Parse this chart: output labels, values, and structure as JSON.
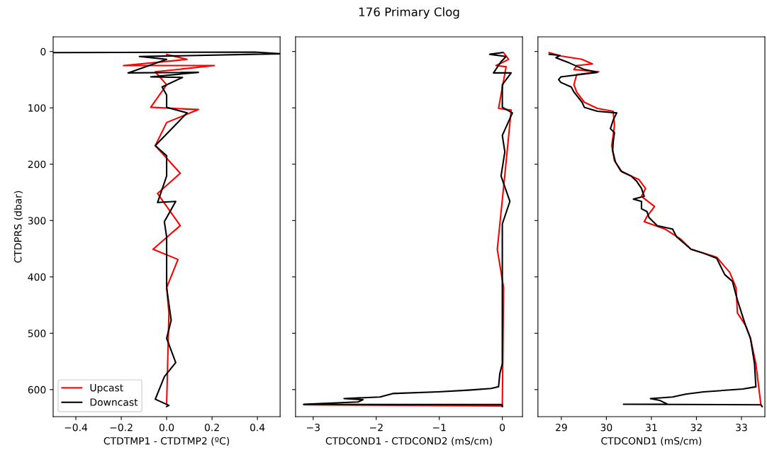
{
  "chart_data": [
    {
      "type": "line",
      "xlabel": "CTDTMP1 - CTDTMP2 (ºC)",
      "ylabel": "CTDPRS (dbar)",
      "xlim": [
        -0.5,
        0.5
      ],
      "xticks": [
        {
          "value": -0.4,
          "label": "−0.4"
        },
        {
          "value": -0.2,
          "label": "−0.2"
        },
        {
          "value": 0,
          "label": "0.0"
        },
        {
          "value": 0.2,
          "label": "0.2"
        },
        {
          "value": 0.4,
          "label": "0.4"
        }
      ],
      "ylim": [
        648,
        -26
      ],
      "yticks": [
        0,
        100,
        200,
        300,
        400,
        500,
        600
      ],
      "legend": "lower left",
      "grid": false,
      "series": [
        {
          "name": "Upcast",
          "color": "#ff0000",
          "x": [
            0,
            0.09,
            -0.19,
            0.21,
            -0.05,
            0,
            -0.07,
            0.14,
            0,
            -0.05,
            0.06,
            -0.04,
            0.06,
            -0.06,
            0.05,
            0,
            0.01,
            0
          ],
          "values": [
            5,
            14,
            25,
            25,
            36,
            59,
            99,
            103,
            126,
            167,
            216,
            252,
            309,
            351,
            369,
            419,
            464,
            626
          ]
        },
        {
          "name": "Downcast",
          "color": "#000000",
          "x": [
            -0.5,
            0.39,
            0.5,
            -0.12,
            0,
            -0.17,
            0.14,
            -0.07,
            0.07,
            -0.02,
            0,
            0,
            0.09,
            -0.05,
            0,
            0,
            -0.04,
            0.04,
            -0.01,
            0,
            0,
            0.02,
            0,
            0.04,
            -0.01,
            -0.05,
            0.01,
            0
          ],
          "values": [
            2,
            1,
            4,
            9,
            14,
            38,
            37,
            45,
            46,
            63,
            77,
            99,
            109,
            167,
            185,
            221,
            268,
            266,
            302,
            329,
            419,
            477,
            509,
            552,
            577,
            617,
            628,
            630
          ]
        }
      ]
    },
    {
      "type": "line",
      "title": "176 Primary Clog",
      "xlabel": "CTDCOND1 - CTDCOND2 (mS/cm)",
      "xlim": [
        -3.28,
        0.32
      ],
      "xticks": [
        {
          "value": -3,
          "label": "−3"
        },
        {
          "value": -2,
          "label": "−2"
        },
        {
          "value": -1,
          "label": "−1"
        },
        0
      ],
      "ylim": [
        648,
        -26
      ],
      "yticks": [
        0,
        100,
        200,
        300,
        400,
        500,
        600
      ],
      "tick_labels": "x",
      "grid": false,
      "series": [
        {
          "color": "#ff0000",
          "x": [
            0.02,
            0.1,
            -0.1,
            0.06,
            -0.06,
            0.14,
            0.04,
            -0.08,
            0.02,
            0,
            -3.15,
            0
          ],
          "values": [
            2,
            14,
            25,
            27,
            101,
            104,
            219,
            351,
            419,
            626,
            627,
            629
          ]
        },
        {
          "color": "#000000",
          "x": [
            0,
            -0.2,
            0.06,
            -0.02,
            -0.14,
            0.14,
            0,
            0,
            0.16,
            0,
            0.04,
            -0.02,
            0.12,
            0,
            0,
            0,
            -0.04,
            -0.06,
            -0.18,
            -0.54,
            -1.02,
            -1.74,
            -1.94,
            -2.51,
            -2.21,
            -2.29,
            -3.15,
            0,
            0
          ],
          "values": [
            2,
            5,
            9,
            18,
            38,
            38,
            59,
            99,
            109,
            149,
            178,
            221,
            266,
            306,
            419,
            554,
            572,
            595,
            598,
            601,
            604,
            607,
            613,
            616,
            618,
            622,
            626,
            627,
            630
          ]
        }
      ]
    },
    {
      "type": "line",
      "xlabel": "CTDCOND1 (mS/cm)",
      "xlim": [
        28.48,
        33.52
      ],
      "xticks": [
        29,
        30,
        31,
        32,
        33
      ],
      "ylim": [
        648,
        -26
      ],
      "yticks": [
        0,
        100,
        200,
        300,
        400,
        500,
        600
      ],
      "tick_labels": "x",
      "grid": false,
      "series": [
        {
          "color": "#ff0000",
          "x": [
            28.73,
            28.99,
            29.46,
            29.69,
            29.34,
            29.28,
            29.83,
            29.34,
            29.28,
            29.34,
            29.51,
            29.8,
            30.15,
            30.18,
            30.12,
            30.18,
            30.35,
            30.72,
            30.87,
            30.78,
            31.07,
            30.9,
            30.84,
            31.3,
            31.65,
            31.88,
            32.45,
            32.74,
            32.88,
            32.91,
            33.09,
            33.2,
            33.32,
            33.43
          ],
          "values": [
            2,
            8,
            14,
            22,
            25,
            32,
            36,
            41,
            59,
            72,
            90,
            101,
            106,
            131,
            167,
            194,
            214,
            227,
            243,
            257,
            275,
            293,
            302,
            315,
            333,
            351,
            365,
            392,
            419,
            464,
            486,
            509,
            554,
            626
          ]
        },
        {
          "color": "#000000",
          "x": [
            28.73,
            28.97,
            28.88,
            29.17,
            29.51,
            29.8,
            28.99,
            28.94,
            28.99,
            29.22,
            29.28,
            29.46,
            29.51,
            29.8,
            30.23,
            30.15,
            30.09,
            30.18,
            30.15,
            30.14,
            30.2,
            30.32,
            30.55,
            30.67,
            30.78,
            30.84,
            30.6,
            30.78,
            30.78,
            30.9,
            30.95,
            31.13,
            31.47,
            31.56,
            31.88,
            32.16,
            32.45,
            32.63,
            32.8,
            32.91,
            33.09,
            33.2,
            33.29,
            33.32,
            33.03,
            32.16,
            31.76,
            31.47,
            30.98,
            31.18,
            31.36,
            30.38,
            33.43,
            33.46
          ],
          "values": [
            5,
            7,
            11,
            20,
            32,
            37,
            45,
            50,
            55,
            63,
            72,
            90,
            99,
            106,
            109,
            122,
            137,
            144,
            162,
            176,
            196,
            212,
            221,
            230,
            243,
            257,
            262,
            266,
            279,
            284,
            295,
            309,
            315,
            329,
            351,
            358,
            367,
            396,
            408,
            441,
            486,
            509,
            554,
            595,
            599,
            604,
            608,
            613,
            616,
            619,
            626,
            626,
            627,
            630
          ]
        }
      ]
    }
  ]
}
